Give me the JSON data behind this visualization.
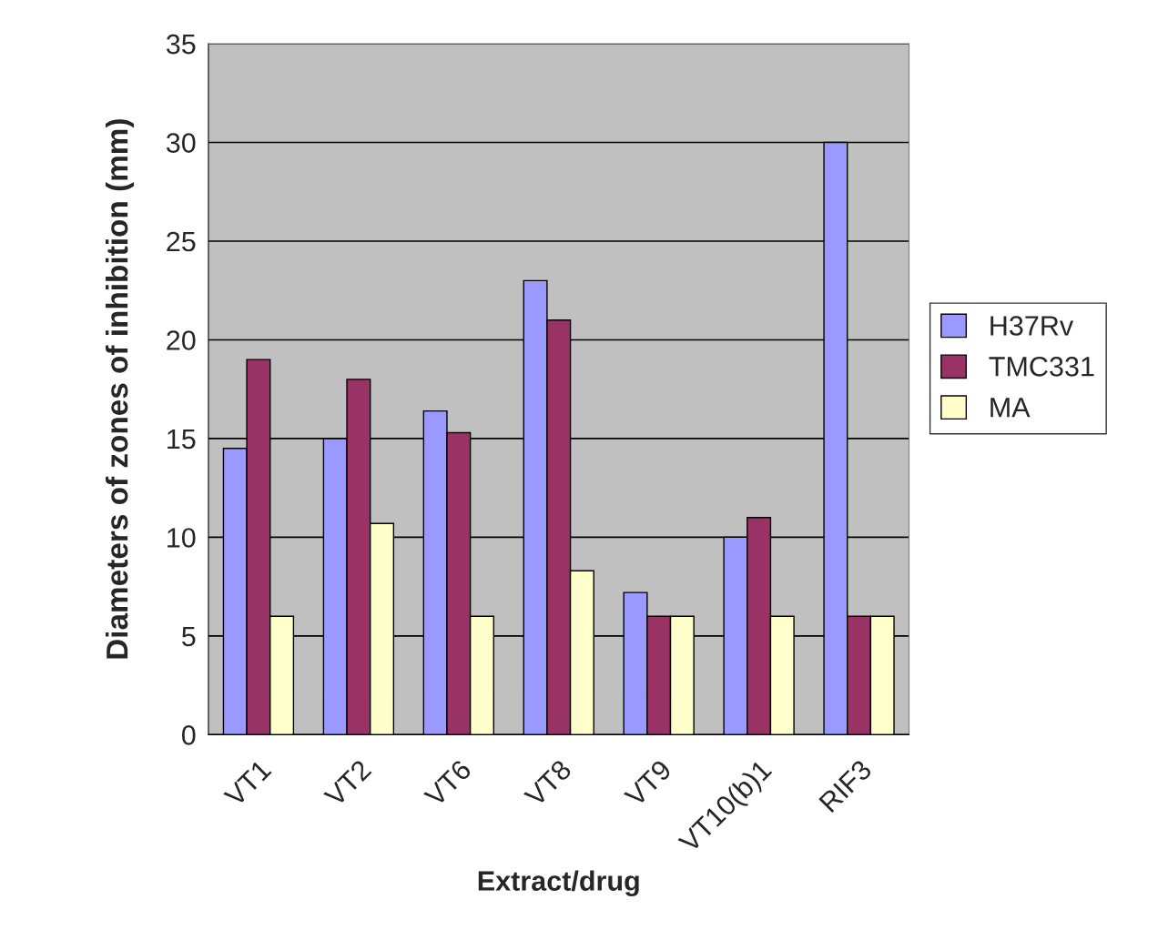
{
  "chart_data": {
    "type": "bar",
    "xlabel": "Extract/drug",
    "ylabel": "Diameters of zones of inhibition (mm)",
    "categories": [
      "VT1",
      "VT2",
      "VT6",
      "VT8",
      "VT9",
      "VT10(b)1",
      "RIF3"
    ],
    "series": [
      {
        "name": "H37Rv",
        "color": "#9999ff",
        "values": [
          14.5,
          15,
          16.4,
          23,
          7.2,
          10,
          30
        ]
      },
      {
        "name": "TMC331",
        "color": "#993366",
        "values": [
          19,
          18,
          15.3,
          21,
          6,
          11,
          6
        ]
      },
      {
        "name": "MA",
        "color": "#ffffcc",
        "values": [
          6,
          10.7,
          6,
          8.3,
          6,
          6,
          6
        ]
      }
    ],
    "ylim": [
      0,
      35
    ],
    "yticks": [
      0,
      5,
      10,
      15,
      20,
      25,
      30,
      35
    ],
    "grid": "y",
    "legend": "right"
  }
}
